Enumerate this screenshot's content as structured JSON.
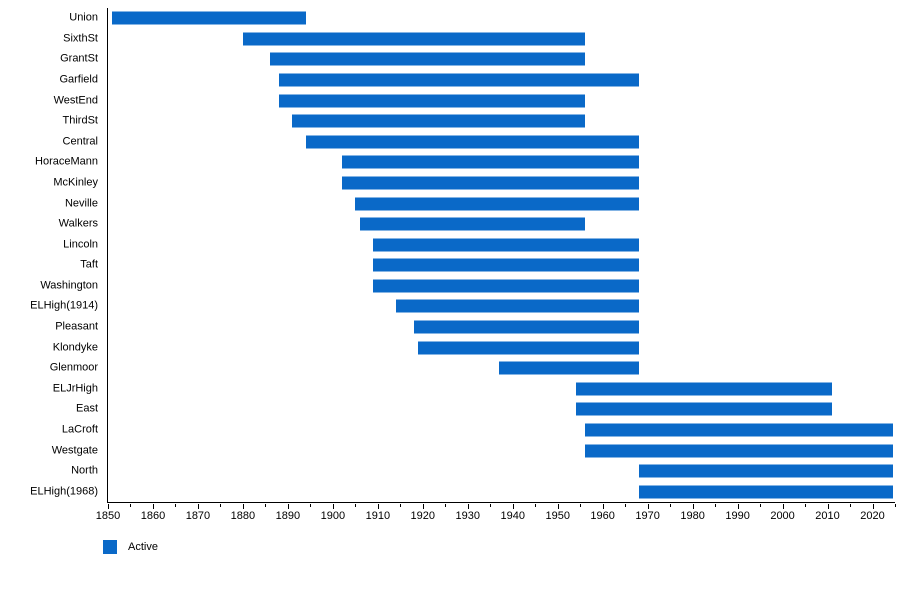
{
  "chart_data": {
    "type": "bar",
    "variant": "horizontal-timeline-gantt",
    "title": "",
    "xlabel": "",
    "ylabel": "",
    "xlim": [
      1850,
      2025
    ],
    "x_ticks": [
      1850,
      1860,
      1870,
      1880,
      1890,
      1900,
      1910,
      1920,
      1930,
      1940,
      1950,
      1960,
      1970,
      1980,
      1990,
      2000,
      2010,
      2020
    ],
    "x_minor_step": 5,
    "grid": "off",
    "legend_position": "bottom-left",
    "legend": [
      {
        "label": "Active",
        "color": "#0a69c8"
      }
    ],
    "categories": [
      "Union",
      "SixthSt",
      "GrantSt",
      "Garfield",
      "WestEnd",
      "ThirdSt",
      "Central",
      "HoraceMann",
      "McKinley",
      "Neville",
      "Walkers",
      "Lincoln",
      "Taft",
      "Washington",
      "ELHigh(1914)",
      "Pleasant",
      "Klondyke",
      "Glenmoor",
      "ELJrHigh",
      "East",
      "LaCroft",
      "Westgate",
      "North",
      "ELHigh(1968)"
    ],
    "bars": [
      {
        "label": "Union",
        "start": 1851,
        "end": 1894
      },
      {
        "label": "SixthSt",
        "start": 1880,
        "end": 1956
      },
      {
        "label": "GrantSt",
        "start": 1886,
        "end": 1956
      },
      {
        "label": "Garfield",
        "start": 1888,
        "end": 1968
      },
      {
        "label": "WestEnd",
        "start": 1888,
        "end": 1956
      },
      {
        "label": "ThirdSt",
        "start": 1891,
        "end": 1956
      },
      {
        "label": "Central",
        "start": 1894,
        "end": 1968
      },
      {
        "label": "HoraceMann",
        "start": 1902,
        "end": 1968
      },
      {
        "label": "McKinley",
        "start": 1902,
        "end": 1968
      },
      {
        "label": "Neville",
        "start": 1905,
        "end": 1968
      },
      {
        "label": "Walkers",
        "start": 1906,
        "end": 1956
      },
      {
        "label": "Lincoln",
        "start": 1909,
        "end": 1968
      },
      {
        "label": "Taft",
        "start": 1909,
        "end": 1968
      },
      {
        "label": "Washington",
        "start": 1909,
        "end": 1968
      },
      {
        "label": "ELHigh(1914)",
        "start": 1914,
        "end": 1968
      },
      {
        "label": "Pleasant",
        "start": 1918,
        "end": 1968
      },
      {
        "label": "Klondyke",
        "start": 1919,
        "end": 1968
      },
      {
        "label": "Glenmoor",
        "start": 1937,
        "end": 1968
      },
      {
        "label": "ELJrHigh",
        "start": 1954,
        "end": 2011
      },
      {
        "label": "East",
        "start": 1954,
        "end": 2011
      },
      {
        "label": "LaCroft",
        "start": 1956,
        "end": 2024.5
      },
      {
        "label": "Westgate",
        "start": 1956,
        "end": 2024.5
      },
      {
        "label": "North",
        "start": 1968,
        "end": 2024.5
      },
      {
        "label": "ELHigh(1968)",
        "start": 1968,
        "end": 2024.5
      }
    ]
  }
}
